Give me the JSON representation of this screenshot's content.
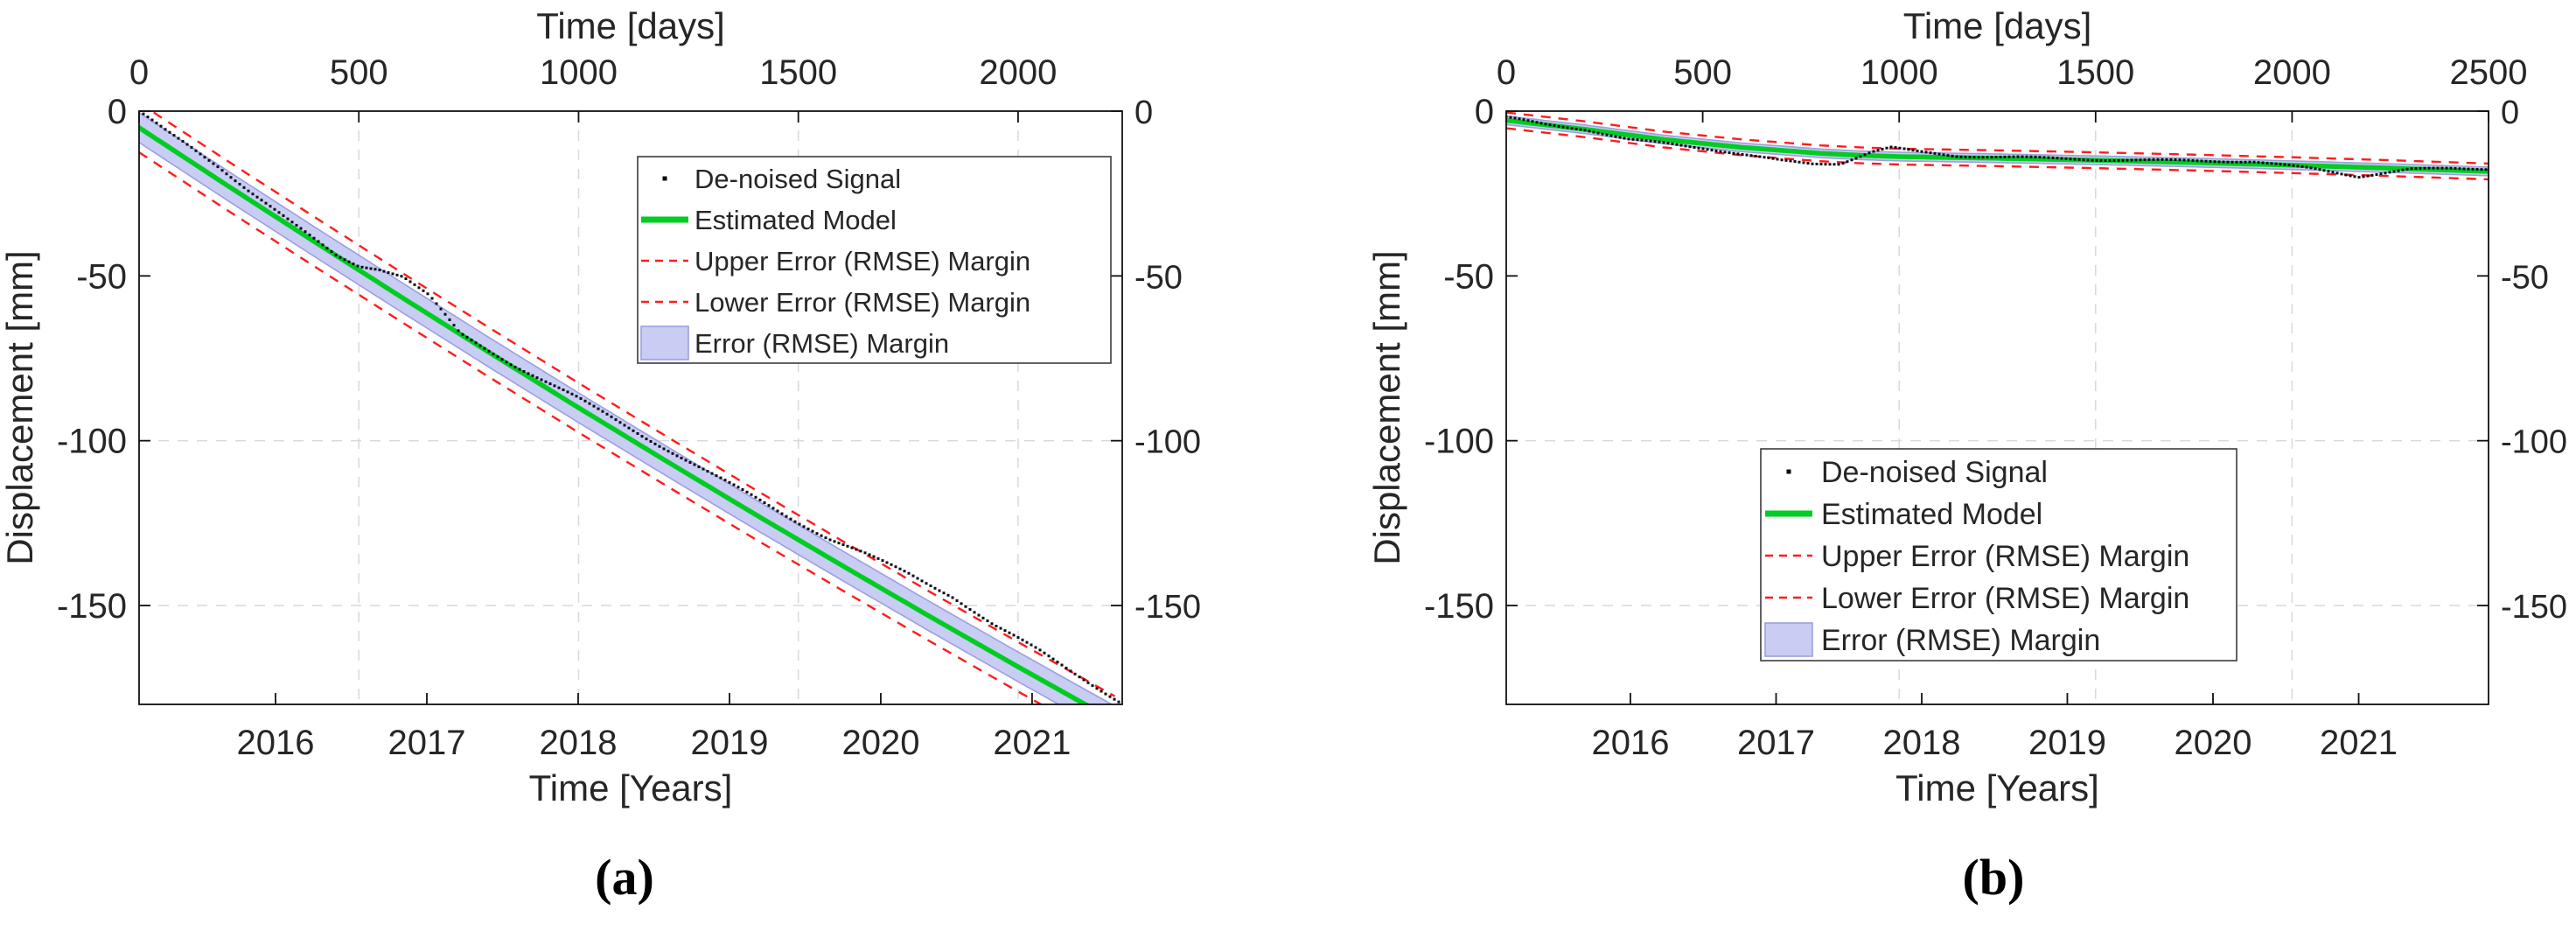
{
  "figure": {
    "background": "#ffffff",
    "captions": {
      "a": "(a)",
      "b": "(b)"
    }
  },
  "colors": {
    "signal": "#0b0b16",
    "model": "#00cc22",
    "margin": "#ff1c1c",
    "band_fill": "#c9cdf4",
    "band_edge": "#9aa0de",
    "grid": "#d9d9d9",
    "axis": "#111111",
    "text": "#262626",
    "legend_border": "#3c3c3c"
  },
  "chart_data": [
    {
      "id": "a",
      "type": "line",
      "caption": "(a)",
      "title_top": "Time [days]",
      "xlabel_bottom": "Time [Years]",
      "ylabel": "Displacement [mm]",
      "x_days": {
        "ticks": [
          0,
          500,
          1000,
          1500,
          2000
        ],
        "max": 2237,
        "grid": [
          500,
          1000,
          1500,
          2000
        ]
      },
      "x_years": {
        "ticks": [
          "2016",
          "2017",
          "2018",
          "2019",
          "2020",
          "2021"
        ],
        "fractions": [
          0.1388,
          0.2927,
          0.4466,
          0.6005,
          0.7544,
          0.9083
        ]
      },
      "y_mm": {
        "ticks": [
          0,
          -50,
          -100,
          -150
        ],
        "min": -180,
        "max": 0,
        "grid": [
          -100,
          -150
        ]
      },
      "rmse_mm": 7.5,
      "band_mm": 4.5,
      "noise_mm": 0.7,
      "legend": {
        "entries": [
          {
            "label": "De-noised Signal",
            "marker": "dot"
          },
          {
            "label": "Estimated Model",
            "marker": "line"
          },
          {
            "label": "Upper Error (RMSE) Margin",
            "marker": "dash"
          },
          {
            "label": "Lower Error (RMSE) Margin",
            "marker": "dash"
          },
          {
            "label": "Error (RMSE) Margin",
            "marker": "fill"
          }
        ]
      },
      "series": {
        "model": [
          [
            0,
            -5.0
          ],
          [
            200,
            -22.5
          ],
          [
            400,
            -39.7
          ],
          [
            600,
            -56.7
          ],
          [
            800,
            -73.5
          ],
          [
            1000,
            -90.0
          ],
          [
            1200,
            -106.2
          ],
          [
            1400,
            -122.2
          ],
          [
            1600,
            -137.9
          ],
          [
            1800,
            -153.4
          ],
          [
            2000,
            -168.6
          ],
          [
            2237,
            -186.3
          ]
        ],
        "signal": [
          [
            0,
            -0.5
          ],
          [
            60,
            -6
          ],
          [
            120,
            -11
          ],
          [
            180,
            -16.5
          ],
          [
            250,
            -24
          ],
          [
            350,
            -34
          ],
          [
            450,
            -43.5
          ],
          [
            500,
            -46.5
          ],
          [
            545,
            -47.5
          ],
          [
            600,
            -50
          ],
          [
            660,
            -56
          ],
          [
            730,
            -67.5
          ],
          [
            850,
            -77
          ],
          [
            1000,
            -87.5
          ],
          [
            1150,
            -99
          ],
          [
            1300,
            -110
          ],
          [
            1400,
            -117
          ],
          [
            1500,
            -124.5
          ],
          [
            1570,
            -129.5
          ],
          [
            1650,
            -134
          ],
          [
            1750,
            -140
          ],
          [
            1850,
            -147
          ],
          [
            1944,
            -156
          ],
          [
            2050,
            -164
          ],
          [
            2150,
            -172.5
          ],
          [
            2237,
            -180
          ]
        ]
      }
    },
    {
      "id": "b",
      "type": "line",
      "caption": "(b)",
      "title_top": "Time [days]",
      "xlabel_bottom": "Time [Years]",
      "ylabel": "Displacement [mm]",
      "x_days": {
        "ticks": [
          0,
          500,
          1000,
          1500,
          2000,
          2500
        ],
        "max": 2500,
        "grid": [
          1000,
          1500,
          2000,
          2500
        ]
      },
      "x_years": {
        "ticks": [
          "2016",
          "2017",
          "2018",
          "2019",
          "2020",
          "2021"
        ],
        "fractions": [
          0.1264,
          0.2747,
          0.423,
          0.5712,
          0.7195,
          0.8678
        ]
      },
      "y_mm": {
        "ticks": [
          0,
          -50,
          -100,
          -150
        ],
        "min": -180,
        "max": 0,
        "grid": [
          -100,
          -150
        ]
      },
      "rmse_mm": 2.4,
      "band_mm": 1.3,
      "noise_mm": 0.4,
      "legend": {
        "entries": [
          {
            "label": "De-noised Signal",
            "marker": "dot"
          },
          {
            "label": "Estimated Model",
            "marker": "line"
          },
          {
            "label": "Upper Error (RMSE) Margin",
            "marker": "dash"
          },
          {
            "label": "Lower Error (RMSE) Margin",
            "marker": "dash"
          },
          {
            "label": "Error (RMSE) Margin",
            "marker": "fill"
          }
        ]
      },
      "series": {
        "model": [
          [
            0,
            -2.8
          ],
          [
            200,
            -5.5
          ],
          [
            400,
            -8.6
          ],
          [
            600,
            -11.0
          ],
          [
            800,
            -12.8
          ],
          [
            900,
            -13.4
          ],
          [
            1000,
            -13.8
          ],
          [
            1250,
            -14.3
          ],
          [
            1500,
            -14.9
          ],
          [
            1750,
            -15.6
          ],
          [
            2000,
            -16.4
          ],
          [
            2250,
            -17.3
          ],
          [
            2500,
            -18.3
          ]
        ],
        "signal": [
          [
            0,
            -2
          ],
          [
            100,
            -4
          ],
          [
            200,
            -5.5
          ],
          [
            310,
            -8.5
          ],
          [
            400,
            -9.5
          ],
          [
            500,
            -11
          ],
          [
            600,
            -13
          ],
          [
            700,
            -15
          ],
          [
            780,
            -16
          ],
          [
            850,
            -16
          ],
          [
            930,
            -12.5
          ],
          [
            980,
            -11.2
          ],
          [
            1050,
            -12.5
          ],
          [
            1150,
            -13.8
          ],
          [
            1300,
            -14
          ],
          [
            1500,
            -14.6
          ],
          [
            1700,
            -14.8
          ],
          [
            1900,
            -15.3
          ],
          [
            2050,
            -17.5
          ],
          [
            2170,
            -20
          ],
          [
            2300,
            -17.8
          ],
          [
            2400,
            -17.5
          ],
          [
            2500,
            -17.5
          ]
        ]
      }
    }
  ]
}
